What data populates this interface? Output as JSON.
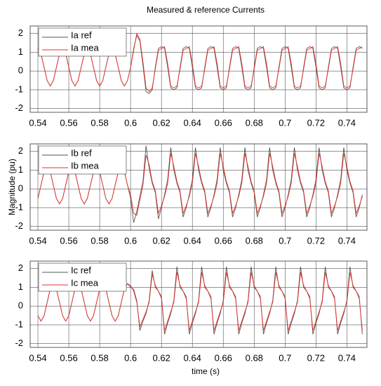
{
  "chart_data": [
    {
      "type": "line",
      "title": "Measured & reference Currents",
      "legend": "upper left",
      "grid": true,
      "xlim": [
        0.535,
        0.753
      ],
      "xticks": [
        0.54,
        0.56,
        0.58,
        0.6,
        0.62,
        0.64,
        0.66,
        0.68,
        0.7,
        0.72,
        0.74
      ],
      "ylim": [
        -2.2,
        2.4
      ],
      "yticks": [
        -2,
        -1,
        0,
        1,
        2
      ],
      "x": [
        0.54,
        0.542,
        0.544,
        0.546,
        0.548,
        0.55,
        0.552,
        0.554,
        0.556,
        0.558,
        0.56,
        0.562,
        0.564,
        0.566,
        0.568,
        0.57,
        0.572,
        0.574,
        0.576,
        0.578,
        0.58,
        0.582,
        0.584,
        0.586,
        0.588,
        0.59,
        0.592,
        0.594,
        0.596,
        0.598,
        0.6,
        0.602,
        0.604,
        0.606,
        0.608,
        0.61,
        0.612,
        0.614,
        0.616,
        0.618,
        0.62,
        0.622,
        0.624,
        0.626,
        0.628,
        0.63,
        0.632,
        0.634,
        0.636,
        0.638,
        0.64,
        0.642,
        0.644,
        0.646,
        0.648,
        0.65,
        0.652,
        0.654,
        0.656,
        0.658,
        0.66,
        0.662,
        0.664,
        0.666,
        0.668,
        0.67,
        0.672,
        0.674,
        0.676,
        0.678,
        0.68,
        0.682,
        0.684,
        0.686,
        0.688,
        0.69,
        0.692,
        0.694,
        0.696,
        0.698,
        0.7,
        0.702,
        0.704,
        0.706,
        0.708,
        0.71,
        0.712,
        0.714,
        0.716,
        0.718,
        0.72,
        0.722,
        0.724,
        0.726,
        0.728,
        0.73,
        0.732,
        0.734,
        0.736,
        0.738,
        0.74,
        0.742,
        0.744,
        0.746,
        0.748,
        0.75
      ],
      "series": [
        {
          "name": "Ia ref",
          "color": "#555555",
          "values": [
            1.2,
            0.91,
            0.2,
            -0.51,
            -0.8,
            -0.51,
            0.2,
            0.91,
            1.2,
            0.91,
            0.2,
            -0.51,
            -0.8,
            -0.51,
            0.2,
            0.91,
            1.2,
            0.91,
            0.2,
            -0.51,
            -0.8,
            -0.51,
            0.2,
            0.91,
            1.2,
            0.91,
            0.2,
            -0.51,
            -0.8,
            -0.51,
            0.2,
            1.2,
            1.9,
            1.6,
            0.3,
            -1.1,
            -1.2,
            -1.0,
            0.2,
            1.2,
            1.3,
            1.2,
            0.2,
            -0.9,
            -1.0,
            -0.9,
            0.2,
            1.2,
            1.3,
            1.2,
            0.2,
            -0.9,
            -1.0,
            -0.9,
            0.2,
            1.2,
            1.3,
            1.2,
            0.2,
            -0.9,
            -1.0,
            -0.9,
            0.2,
            1.2,
            1.3,
            1.2,
            0.2,
            -0.9,
            -1.0,
            -0.9,
            0.2,
            1.2,
            1.3,
            1.2,
            0.2,
            -0.9,
            -1.0,
            -0.9,
            0.2,
            1.2,
            1.3,
            1.2,
            0.2,
            -0.9,
            -1.0,
            -0.9,
            0.2,
            1.2,
            1.3,
            1.2,
            0.2,
            -0.9,
            -1.0,
            -0.9,
            0.2,
            1.2,
            1.3,
            1.2,
            0.2,
            -0.9,
            -1.0,
            -0.9,
            0.2,
            1.2,
            1.3,
            1.2
          ]
        },
        {
          "name": "Ia mea",
          "color": "#e8302a",
          "values": [
            1.2,
            0.91,
            0.2,
            -0.51,
            -0.8,
            -0.51,
            0.2,
            0.91,
            1.2,
            0.91,
            0.2,
            -0.51,
            -0.8,
            -0.51,
            0.2,
            0.91,
            1.2,
            0.91,
            0.2,
            -0.51,
            -0.8,
            -0.51,
            0.2,
            0.91,
            1.2,
            0.91,
            0.2,
            -0.51,
            -0.8,
            -0.51,
            0.2,
            1.1,
            2.0,
            1.7,
            0.5,
            -0.9,
            -1.1,
            -0.9,
            0.1,
            1.1,
            1.2,
            1.3,
            0.4,
            -0.8,
            -0.9,
            -0.8,
            0.1,
            1.1,
            1.2,
            1.3,
            0.4,
            -0.8,
            -0.9,
            -0.8,
            0.1,
            1.1,
            1.2,
            1.3,
            0.4,
            -0.8,
            -0.9,
            -0.8,
            0.1,
            1.1,
            1.2,
            1.3,
            0.4,
            -0.8,
            -0.9,
            -0.8,
            0.1,
            1.1,
            1.2,
            1.3,
            0.4,
            -0.8,
            -0.9,
            -0.8,
            0.1,
            1.1,
            1.2,
            1.3,
            0.4,
            -0.8,
            -0.9,
            -0.8,
            0.1,
            1.1,
            1.2,
            1.3,
            0.4,
            -0.8,
            -0.9,
            -0.8,
            0.1,
            1.1,
            1.2,
            1.3,
            0.4,
            -0.8,
            -0.9,
            -0.8,
            0.1,
            1.1,
            1.2,
            1.3
          ]
        }
      ]
    },
    {
      "type": "line",
      "ylabel": "Magnitude (pu)",
      "legend": "upper left",
      "grid": true,
      "xlim": [
        0.535,
        0.753
      ],
      "xticks": [
        0.54,
        0.56,
        0.58,
        0.6,
        0.62,
        0.64,
        0.66,
        0.68,
        0.7,
        0.72,
        0.74
      ],
      "ylim": [
        -2.2,
        2.4
      ],
      "yticks": [
        -2,
        -1,
        0,
        1,
        2
      ],
      "x": [
        0.54,
        0.542,
        0.544,
        0.546,
        0.548,
        0.55,
        0.552,
        0.554,
        0.556,
        0.558,
        0.56,
        0.562,
        0.564,
        0.566,
        0.568,
        0.57,
        0.572,
        0.574,
        0.576,
        0.578,
        0.58,
        0.582,
        0.584,
        0.586,
        0.588,
        0.59,
        0.592,
        0.594,
        0.596,
        0.598,
        0.6,
        0.602,
        0.604,
        0.606,
        0.608,
        0.61,
        0.612,
        0.614,
        0.616,
        0.618,
        0.62,
        0.622,
        0.624,
        0.626,
        0.628,
        0.63,
        0.632,
        0.634,
        0.636,
        0.638,
        0.64,
        0.642,
        0.644,
        0.646,
        0.648,
        0.65,
        0.652,
        0.654,
        0.656,
        0.658,
        0.66,
        0.662,
        0.664,
        0.666,
        0.668,
        0.67,
        0.672,
        0.674,
        0.676,
        0.678,
        0.68,
        0.682,
        0.684,
        0.686,
        0.688,
        0.69,
        0.692,
        0.694,
        0.696,
        0.698,
        0.7,
        0.702,
        0.704,
        0.706,
        0.708,
        0.71,
        0.712,
        0.714,
        0.716,
        0.718,
        0.72,
        0.722,
        0.724,
        0.726,
        0.728,
        0.73,
        0.732,
        0.734,
        0.736,
        0.738,
        0.74,
        0.742,
        0.744,
        0.746,
        0.748,
        0.75
      ],
      "series": [
        {
          "name": "Ib ref",
          "color": "#555555",
          "values": [
            -0.51,
            0.2,
            0.91,
            1.2,
            0.91,
            0.2,
            -0.51,
            -0.8,
            -0.51,
            0.2,
            0.91,
            1.2,
            0.91,
            0.2,
            -0.51,
            -0.8,
            -0.51,
            0.2,
            0.91,
            1.2,
            0.91,
            0.2,
            -0.51,
            -0.8,
            -0.51,
            0.2,
            0.91,
            1.2,
            0.91,
            0.2,
            -0.5,
            -1.8,
            -1.2,
            -0.4,
            0.4,
            2.3,
            1.1,
            0.3,
            -0.2,
            -1.6,
            -1.0,
            -0.3,
            0.5,
            2.2,
            1.0,
            0.3,
            -0.2,
            -1.5,
            -1.0,
            -0.3,
            0.5,
            2.2,
            1.0,
            0.3,
            -0.2,
            -1.5,
            -1.0,
            -0.3,
            0.5,
            2.2,
            1.0,
            0.3,
            -0.2,
            -1.5,
            -1.0,
            -0.3,
            0.5,
            2.2,
            1.0,
            0.3,
            -0.2,
            -1.5,
            -1.0,
            -0.3,
            0.5,
            2.2,
            1.0,
            0.3,
            -0.2,
            -1.5,
            -1.0,
            -0.3,
            0.5,
            2.2,
            1.0,
            0.3,
            -0.2,
            -1.5,
            -1.0,
            -0.3,
            0.5,
            2.2,
            1.0,
            0.3,
            -0.2,
            -1.5,
            -1.0,
            -0.3,
            0.5,
            2.2,
            1.0,
            0.3,
            -0.2,
            -1.5,
            -1.0,
            -0.3
          ]
        },
        {
          "name": "Ib mea",
          "color": "#e8302a",
          "values": [
            -0.51,
            0.2,
            0.91,
            1.2,
            0.91,
            0.2,
            -0.51,
            -0.8,
            -0.51,
            0.2,
            0.91,
            1.2,
            0.91,
            0.2,
            -0.51,
            -0.8,
            -0.51,
            0.2,
            0.91,
            1.2,
            0.91,
            0.2,
            -0.51,
            -0.8,
            -0.51,
            0.2,
            0.91,
            1.2,
            0.91,
            0.2,
            -0.3,
            -1.3,
            -1.4,
            -0.6,
            0.2,
            1.8,
            1.3,
            0.4,
            -0.1,
            -1.3,
            -0.9,
            -0.4,
            0.3,
            1.9,
            1.2,
            0.4,
            -0.1,
            -1.3,
            -0.9,
            -0.4,
            0.3,
            1.9,
            1.2,
            0.4,
            -0.1,
            -1.3,
            -0.9,
            -0.4,
            0.3,
            1.9,
            1.2,
            0.4,
            -0.1,
            -1.3,
            -0.9,
            -0.4,
            0.3,
            1.9,
            1.2,
            0.4,
            -0.1,
            -1.3,
            -0.9,
            -0.4,
            0.3,
            1.9,
            1.2,
            0.4,
            -0.1,
            -1.3,
            -0.9,
            -0.4,
            0.3,
            1.9,
            1.2,
            0.4,
            -0.1,
            -1.3,
            -0.9,
            -0.4,
            0.3,
            1.9,
            1.2,
            0.4,
            -0.1,
            -1.3,
            -0.9,
            -0.4,
            0.3,
            1.9,
            1.2,
            0.4,
            -0.1,
            -1.3,
            -0.9,
            -0.4
          ]
        }
      ]
    },
    {
      "type": "line",
      "xlabel": "time (s)",
      "legend": "upper left",
      "grid": true,
      "xlim": [
        0.535,
        0.753
      ],
      "xticks": [
        0.54,
        0.56,
        0.58,
        0.6,
        0.62,
        0.64,
        0.66,
        0.68,
        0.7,
        0.72,
        0.74
      ],
      "ylim": [
        -2.2,
        2.4
      ],
      "yticks": [
        -2,
        -1,
        0,
        1,
        2
      ],
      "x": [
        0.54,
        0.542,
        0.544,
        0.546,
        0.548,
        0.55,
        0.552,
        0.554,
        0.556,
        0.558,
        0.56,
        0.562,
        0.564,
        0.566,
        0.568,
        0.57,
        0.572,
        0.574,
        0.576,
        0.578,
        0.58,
        0.582,
        0.584,
        0.586,
        0.588,
        0.59,
        0.592,
        0.594,
        0.596,
        0.598,
        0.6,
        0.602,
        0.604,
        0.606,
        0.608,
        0.61,
        0.612,
        0.614,
        0.616,
        0.618,
        0.62,
        0.622,
        0.624,
        0.626,
        0.628,
        0.63,
        0.632,
        0.634,
        0.636,
        0.638,
        0.64,
        0.642,
        0.644,
        0.646,
        0.648,
        0.65,
        0.652,
        0.654,
        0.656,
        0.658,
        0.66,
        0.662,
        0.664,
        0.666,
        0.668,
        0.67,
        0.672,
        0.674,
        0.676,
        0.678,
        0.68,
        0.682,
        0.684,
        0.686,
        0.688,
        0.69,
        0.692,
        0.694,
        0.696,
        0.698,
        0.7,
        0.702,
        0.704,
        0.706,
        0.708,
        0.71,
        0.712,
        0.714,
        0.716,
        0.718,
        0.72,
        0.722,
        0.724,
        0.726,
        0.728,
        0.73,
        0.732,
        0.734,
        0.736,
        0.738,
        0.74,
        0.742,
        0.744,
        0.746,
        0.748,
        0.75
      ],
      "series": [
        {
          "name": "Ic ref",
          "color": "#555555",
          "values": [
            -0.51,
            -0.8,
            -0.51,
            0.2,
            0.91,
            1.2,
            0.91,
            0.2,
            -0.51,
            -0.8,
            -0.51,
            0.2,
            0.91,
            1.2,
            0.91,
            0.2,
            -0.51,
            -0.8,
            -0.51,
            0.2,
            0.91,
            1.2,
            0.91,
            0.2,
            -0.51,
            -0.8,
            -0.51,
            0.2,
            0.91,
            1.2,
            1.0,
            0.9,
            0.3,
            -1.3,
            -0.8,
            -0.4,
            0.3,
            1.9,
            1.0,
            0.8,
            0.5,
            -1.5,
            -0.9,
            -0.4,
            0.3,
            2.1,
            1.0,
            0.8,
            0.5,
            -1.5,
            -0.9,
            -0.4,
            0.3,
            2.1,
            1.0,
            0.8,
            0.5,
            -1.5,
            -0.9,
            -0.4,
            0.3,
            2.1,
            1.0,
            0.8,
            0.5,
            -1.5,
            -0.9,
            -0.4,
            0.3,
            2.1,
            1.0,
            0.8,
            0.5,
            -1.5,
            -0.9,
            -0.4,
            0.3,
            2.1,
            1.0,
            0.8,
            0.5,
            -1.5,
            -0.9,
            -0.4,
            0.3,
            2.1,
            1.0,
            0.8,
            0.5,
            -1.5,
            -0.9,
            -0.4,
            0.3,
            2.1,
            1.0,
            0.8,
            0.5,
            -1.5,
            -0.9,
            -0.4,
            0.3,
            2.1,
            1.0,
            0.8,
            0.5,
            -1.5
          ]
        },
        {
          "name": "Ic mea",
          "color": "#e8302a",
          "values": [
            -0.51,
            -0.8,
            -0.51,
            0.2,
            0.91,
            1.2,
            0.91,
            0.2,
            -0.51,
            -0.8,
            -0.51,
            0.2,
            0.91,
            1.2,
            0.91,
            0.2,
            -0.51,
            -0.8,
            -0.51,
            0.2,
            0.91,
            1.2,
            0.91,
            0.2,
            -0.51,
            -0.8,
            -0.51,
            0.2,
            0.91,
            1.2,
            1.1,
            0.8,
            0.2,
            -1.1,
            -0.7,
            -0.3,
            0.2,
            1.7,
            1.1,
            0.8,
            0.4,
            -1.3,
            -0.8,
            -0.3,
            0.2,
            1.8,
            1.1,
            0.8,
            0.4,
            -1.3,
            -0.8,
            -0.3,
            0.2,
            1.8,
            1.1,
            0.8,
            0.4,
            -1.3,
            -0.8,
            -0.3,
            0.2,
            1.8,
            1.1,
            0.8,
            0.4,
            -1.3,
            -0.8,
            -0.3,
            0.2,
            1.8,
            1.1,
            0.8,
            0.4,
            -1.3,
            -0.8,
            -0.3,
            0.2,
            1.8,
            1.1,
            0.8,
            0.4,
            -1.3,
            -0.8,
            -0.3,
            0.2,
            1.8,
            1.1,
            0.8,
            0.4,
            -1.3,
            -0.8,
            -0.3,
            0.2,
            1.8,
            1.1,
            0.8,
            0.4,
            -1.3,
            -0.8,
            -0.3,
            0.2,
            1.8,
            1.1,
            0.8,
            0.4,
            -1.3
          ]
        }
      ]
    }
  ]
}
